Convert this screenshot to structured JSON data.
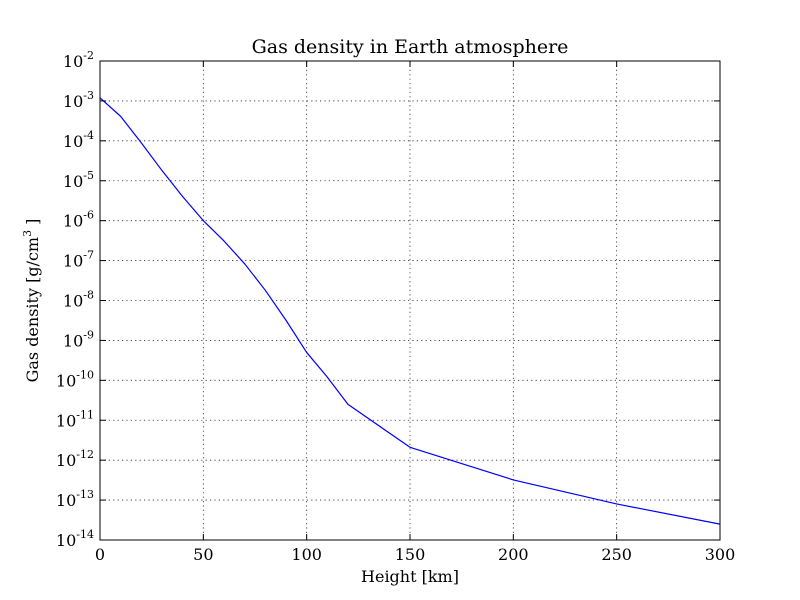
{
  "chart_data": {
    "type": "line",
    "title": "Gas density in Earth atmosphere",
    "xlabel": "Height [km]",
    "ylabel": "Gas density [g/cm",
    "ylabel_superscript": "3",
    "ylabel_suffix": " ]",
    "xlim": [
      0,
      300
    ],
    "ylim": [
      1e-14,
      0.01
    ],
    "yscale": "log",
    "grid": true,
    "x_ticks": [
      "0",
      "50",
      "100",
      "150",
      "200",
      "250",
      "300"
    ],
    "y_ticks": [
      {
        "base": "10",
        "exp": "-14"
      },
      {
        "base": "10",
        "exp": "-13"
      },
      {
        "base": "10",
        "exp": "-12"
      },
      {
        "base": "10",
        "exp": "-11"
      },
      {
        "base": "10",
        "exp": "-10"
      },
      {
        "base": "10",
        "exp": "-9"
      },
      {
        "base": "10",
        "exp": "-8"
      },
      {
        "base": "10",
        "exp": "-7"
      },
      {
        "base": "10",
        "exp": "-6"
      },
      {
        "base": "10",
        "exp": "-5"
      },
      {
        "base": "10",
        "exp": "-4"
      },
      {
        "base": "10",
        "exp": "-3"
      },
      {
        "base": "10",
        "exp": "-2"
      }
    ],
    "series": [
      {
        "color": "#0000ff",
        "x": [
          0,
          10,
          20,
          30,
          40,
          50,
          60,
          70,
          80,
          90,
          100,
          110,
          120,
          150,
          200,
          250,
          300
        ],
        "y": [
          0.0012,
          0.00041,
          8.9e-05,
          1.8e-05,
          4e-06,
          1e-06,
          3.1e-07,
          8.3e-08,
          1.8e-08,
          3.2e-09,
          5e-10,
          1.2e-10,
          2.5e-11,
          2.1e-12,
          3.2e-13,
          8e-14,
          2.5e-14
        ]
      }
    ]
  }
}
